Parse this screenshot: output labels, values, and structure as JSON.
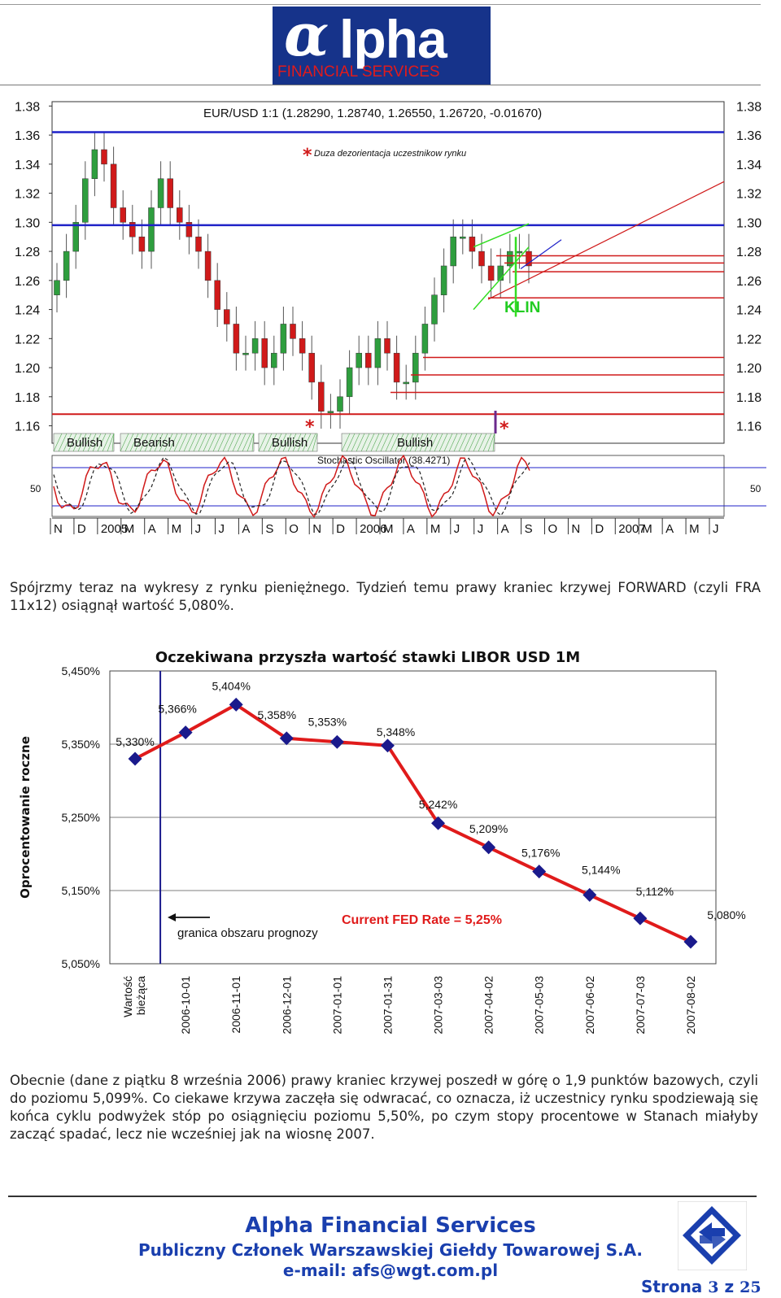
{
  "header": {
    "logo_alpha": "α",
    "logo_word": "lpha",
    "logo_sub": "FINANCIAL SERVICES"
  },
  "fx_chart": {
    "title": "EUR/USD 1:1 (1.28290, 1.28740, 1.26550, 1.26720, -0.01670)",
    "note": "Duza dezorientacja uczestnikow rynku",
    "pattern_label": "KLIN",
    "osc_label": "Stochastic Oscillator (38.4271)",
    "osc_level": "50",
    "price_ticks": [
      "1.38",
      "1.36",
      "1.34",
      "1.32",
      "1.30",
      "1.28",
      "1.26",
      "1.24",
      "1.22",
      "1.20",
      "1.18",
      "1.16"
    ],
    "sentiment": [
      "Bullish",
      "Bearish",
      "Bullish",
      "Bullish"
    ],
    "month_ticks": [
      "N",
      "D",
      "2005",
      "M",
      "A",
      "M",
      "J",
      "J",
      "A",
      "S",
      "O",
      "N",
      "D",
      "2006",
      "M",
      "A",
      "M",
      "J",
      "J",
      "A",
      "S",
      "O",
      "N",
      "D",
      "2007",
      "M",
      "A",
      "M",
      "J"
    ],
    "colors": {
      "bull": "#2e9e3e",
      "bear": "#d01a1a",
      "hline_blue": "#1f22c8",
      "hline_red": "#d01a1a",
      "wedge": "#33dd22"
    }
  },
  "paragraph1": "Spójrzmy teraz na wykresy z rynku pieniężnego. Tydzień temu prawy kraniec krzywej FORWARD (czyli FRA 11x12) osiągnął wartość 5,080%.",
  "chart_data": {
    "type": "line",
    "title": "Oczekiwana przyszła wartość stawki LIBOR USD 1M",
    "ylabel": "Oprocentowanie roczne",
    "xlabel": "",
    "categories": [
      "Wartość bieżąca",
      "2006-10-01",
      "2006-11-01",
      "2006-12-01",
      "2007-01-01",
      "2007-01-31",
      "2007-03-03",
      "2007-04-02",
      "2007-05-03",
      "2007-06-02",
      "2007-07-03",
      "2007-08-02"
    ],
    "values": [
      5.33,
      5.366,
      5.404,
      5.358,
      5.353,
      5.348,
      5.242,
      5.209,
      5.176,
      5.144,
      5.112,
      5.08
    ],
    "data_labels": [
      "5,330%",
      "5,366%",
      "5,404%",
      "5,358%",
      "5,353%",
      "5,348%",
      "5,242%",
      "5,209%",
      "5,176%",
      "5,144%",
      "5,112%",
      "5,080%"
    ],
    "y_ticks": [
      "5,450%",
      "5,350%",
      "5,250%",
      "5,150%",
      "5,050%"
    ],
    "ylim": [
      5.05,
      5.45
    ],
    "annotations": {
      "fed": "Current FED Rate = 5,25%",
      "boundary": "granica obszaru prognozy"
    },
    "colors": {
      "line": "#e01b1b",
      "marker": "#1a1a8c",
      "fed": "#e01b1b",
      "boundary": "#1a1a8c"
    }
  },
  "paragraph2": "Obecnie (dane z piątku 8 września 2006) prawy kraniec krzywej poszedł  w górę o 1,9 punktów bazowych, czyli do poziomu 5,099%. Co ciekawe krzywa zaczęła się odwracać, co oznacza, iż uczestnicy rynku spodziewają się końca cyklu podwyżek stóp po osiągnięciu poziomu 5,50%, po czym stopy procentowe w Stanach miałyby zacząć spadać, lecz nie wcześniej jak na wiosnę 2007.",
  "footer": {
    "company": "Alpha Financial Services",
    "member": "Publiczny Członek Warszawskiej Giełdy Towarowej S.A.",
    "email": "e-mail: afs@wgt.com.pl",
    "page_word": "Strona",
    "page_current": "3",
    "page_sep": "z",
    "page_total": "25"
  }
}
